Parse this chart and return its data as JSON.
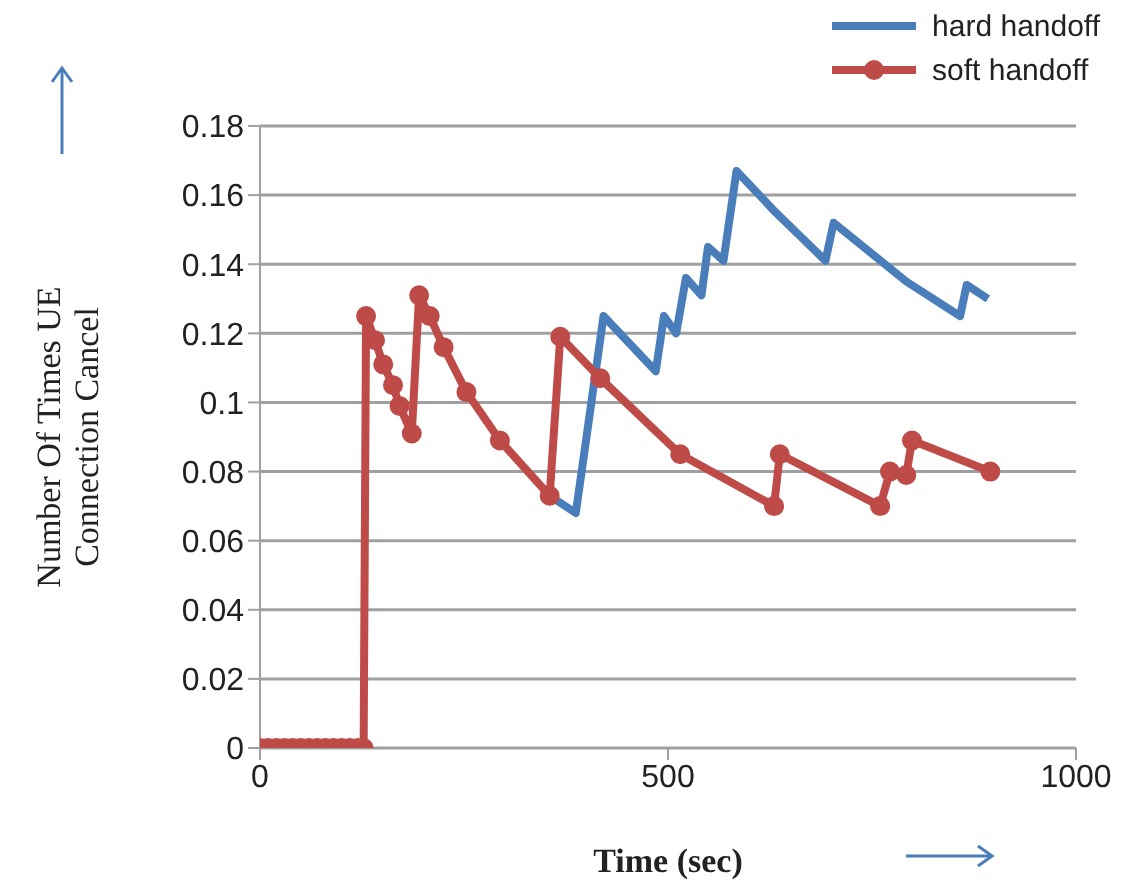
{
  "chart_data": {
    "type": "line",
    "xlabel": "Time (sec)",
    "ylabel": "Number Of Times UE Connection Cancel",
    "xlim": [
      0,
      1000
    ],
    "xticks": [
      0,
      500,
      1000
    ],
    "ylim": [
      0,
      0.18
    ],
    "yticks": [
      0,
      0.02,
      0.04,
      0.06,
      0.08,
      0.1,
      0.12,
      0.14,
      0.16,
      0.18
    ],
    "grid": "y",
    "legend": "top right",
    "line_style": "solid",
    "series": [
      {
        "name": "hard handoff",
        "color": "#4a7ebb",
        "marker": "none",
        "x": [
          355,
          387,
          421,
          485,
          495,
          510,
          522,
          541,
          549,
          568,
          584,
          632,
          693,
          703,
          792,
          858,
          866,
          892
        ],
        "values": [
          0.073,
          0.068,
          0.125,
          0.109,
          0.125,
          0.12,
          0.136,
          0.131,
          0.145,
          0.141,
          0.167,
          0.155,
          0.141,
          0.152,
          0.135,
          0.125,
          0.134,
          0.13
        ]
      },
      {
        "name": "soft handoff",
        "color": "#be4b48",
        "marker": "circle",
        "x": [
          0,
          10,
          20,
          30,
          40,
          50,
          60,
          70,
          80,
          90,
          100,
          110,
          120,
          127,
          130,
          141,
          151,
          163,
          171,
          186,
          195,
          208,
          225,
          253,
          294,
          355,
          368,
          417,
          515,
          630,
          637,
          760,
          772,
          792,
          799,
          895
        ],
        "values": [
          0,
          0,
          0,
          0,
          0,
          0,
          0,
          0,
          0,
          0,
          0,
          0,
          0,
          0,
          0.125,
          0.118,
          0.111,
          0.105,
          0.099,
          0.091,
          0.131,
          0.125,
          0.116,
          0.103,
          0.089,
          0.073,
          0.119,
          0.107,
          0.085,
          0.07,
          0.085,
          0.07,
          0.08,
          0.079,
          0.089,
          0.08
        ]
      }
    ]
  }
}
